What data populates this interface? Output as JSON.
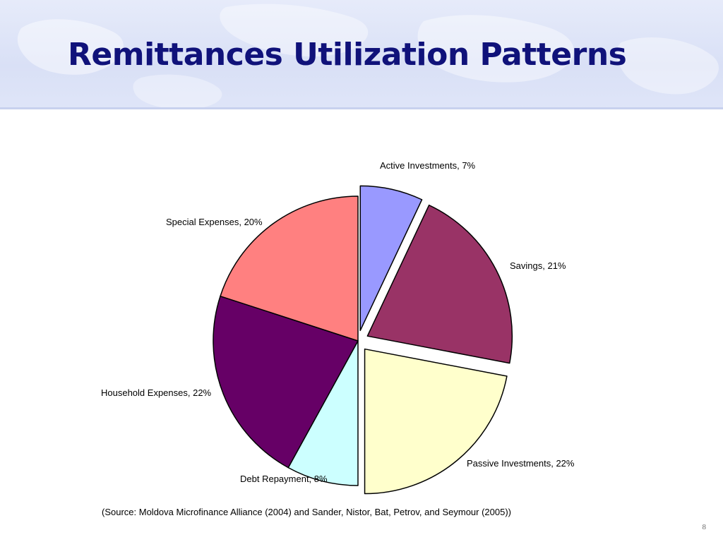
{
  "slide": {
    "title": "Remittances Utilization Patterns",
    "source": "(Source: Moldova Microfinance Alliance (2004) and Sander, Nistor, Bat, Petrov, and Seymour (2005))",
    "page_number": "8"
  },
  "chart_data": {
    "type": "pie",
    "title": "",
    "start_angle_deg": 0,
    "direction": "clockwise",
    "categories": [
      "Active Investments",
      "Savings",
      "Passive Investments",
      "Debt Repayment",
      "Household Expenses",
      "Special Expenses"
    ],
    "values": [
      7,
      21,
      22,
      8,
      22,
      20
    ],
    "unit": "%",
    "labels": [
      "Active Investments, 7%",
      "Savings, 21%",
      "Passive Investments, 22%",
      "Debt Repayment, 8%",
      "Household Expenses, 22%",
      "Special Expenses, 20%"
    ],
    "colors": [
      "#9999ff",
      "#993366",
      "#ffffcc",
      "#ccffff",
      "#660066",
      "#ff8080"
    ],
    "exploded": [
      true,
      true,
      true,
      false,
      false,
      false
    ],
    "legend": "none"
  }
}
